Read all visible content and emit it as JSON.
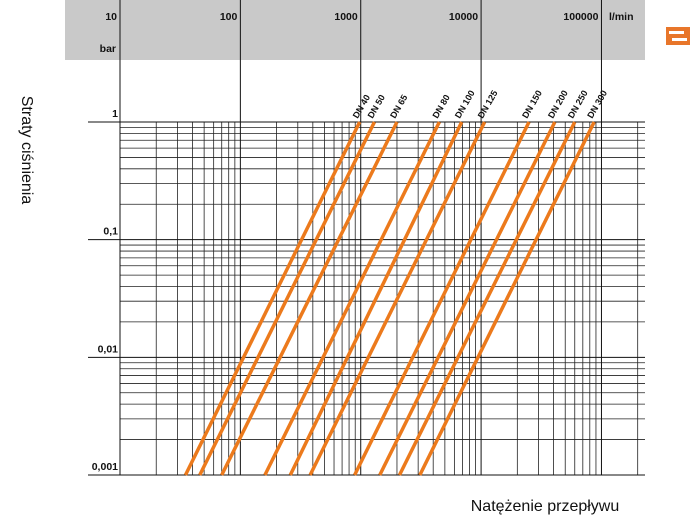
{
  "chart_data": {
    "type": "line",
    "x_label": "Natężenie przepływu",
    "y_label": "Straty ciśnienia",
    "x_unit": "l/min",
    "y_unit": "bar",
    "xscale": "log",
    "yscale": "log",
    "xlim": [
      10,
      230000
    ],
    "ylim": [
      0.001,
      1
    ],
    "xticks": [
      10,
      100,
      1000,
      10000,
      100000
    ],
    "yticks": [
      1,
      {
        "value": 0.1,
        "label": "0,1"
      },
      {
        "value": 0.01,
        "label": "0,01"
      },
      {
        "value": 0.001,
        "label": "0,001"
      }
    ],
    "grid": true,
    "minor_grid": true,
    "series": [
      {
        "name": "DN 40",
        "color": "#ec7a1c",
        "x": [
          980,
          35
        ],
        "y": [
          1,
          0.001
        ]
      },
      {
        "name": "DN 50",
        "color": "#ec7a1c",
        "x": [
          1300,
          46
        ],
        "y": [
          1,
          0.001
        ]
      },
      {
        "name": "DN 65",
        "color": "#ec7a1c",
        "x": [
          2000,
          70
        ],
        "y": [
          1,
          0.001
        ]
      },
      {
        "name": "DN 80",
        "color": "#ec7a1c",
        "x": [
          4500,
          160
        ],
        "y": [
          1,
          0.001
        ]
      },
      {
        "name": "DN 100",
        "color": "#ec7a1c",
        "x": [
          6900,
          260
        ],
        "y": [
          1,
          0.001
        ]
      },
      {
        "name": "DN 125",
        "color": "#ec7a1c",
        "x": [
          10700,
          380
        ],
        "y": [
          1,
          0.001
        ]
      },
      {
        "name": "DN 150",
        "color": "#ec7a1c",
        "x": [
          25000,
          890
        ],
        "y": [
          1,
          0.001
        ]
      },
      {
        "name": "DN 200",
        "color": "#ec7a1c",
        "x": [
          41000,
          1440
        ],
        "y": [
          1,
          0.001
        ]
      },
      {
        "name": "DN 250",
        "color": "#ec7a1c",
        "x": [
          60000,
          2100
        ],
        "y": [
          1,
          0.001
        ]
      },
      {
        "name": "DN 300",
        "color": "#ec7a1c",
        "x": [
          87000,
          3100
        ],
        "y": [
          1,
          0.001
        ]
      }
    ]
  }
}
